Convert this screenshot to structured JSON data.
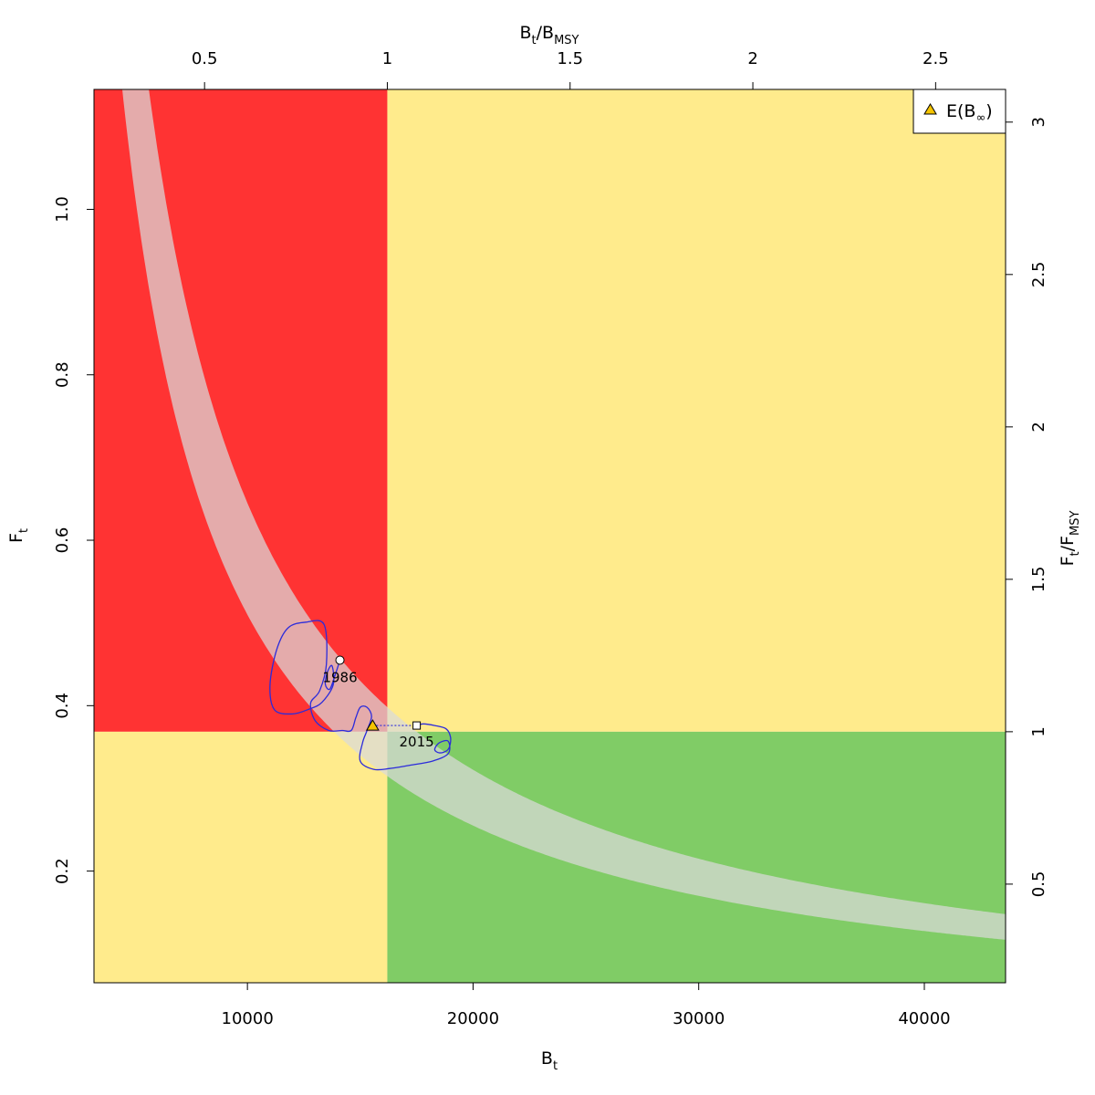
{
  "chart_data": {
    "type": "line",
    "xlabel": {
      "main": "B",
      "sub": "t"
    },
    "ylabel": {
      "main": "F",
      "sub": "t"
    },
    "top_xlabel": {
      "main": "B",
      "sub1": "t",
      "mid": "/B",
      "sub2": "MSY"
    },
    "right_ylabel": {
      "main": "F",
      "sub1": "t",
      "mid": "/F",
      "sub2": "MSY"
    },
    "xlim": [
      3200,
      43600
    ],
    "ylim": [
      0.065,
      1.145
    ],
    "Bmsy": 16200,
    "Fmsy": 0.3685,
    "x_ticks": [
      10000,
      20000,
      30000,
      40000
    ],
    "y_ticks": [
      0.2,
      0.4,
      0.6,
      0.8,
      1.0
    ],
    "x_tick_labels": [
      "10000",
      "20000",
      "30000",
      "40000"
    ],
    "y_tick_labels": [
      "0.2",
      "0.4",
      "0.6",
      "0.8",
      "1.0"
    ],
    "top_ticks": [
      0.5,
      1,
      1.5,
      2,
      2.5
    ],
    "top_tick_labels": [
      "0.5",
      "1",
      "1.5",
      "2",
      "2.5"
    ],
    "right_ticks": [
      0.5,
      1,
      1.5,
      2,
      2.5,
      3
    ],
    "right_tick_labels": [
      "0.5",
      "1",
      "1.5",
      "2",
      "2.5",
      "3"
    ],
    "zone_colors": {
      "overfished_overfishing": "#ff3333",
      "caution": "#ffeb8c",
      "healthy": "#80cc66"
    },
    "msy_band": {
      "lower_catch": 5100,
      "upper_catch": 6450,
      "color": "#d9d9d9"
    },
    "trajectory": {
      "color": "#2b2bdb",
      "points": [
        [
          14100,
          0.455
        ],
        [
          13900,
          0.438
        ],
        [
          13650,
          0.42
        ],
        [
          13450,
          0.426
        ],
        [
          13550,
          0.441
        ],
        [
          13750,
          0.448
        ],
        [
          13800,
          0.425
        ],
        [
          13300,
          0.404
        ],
        [
          12750,
          0.396
        ],
        [
          12000,
          0.39
        ],
        [
          11200,
          0.395
        ],
        [
          11000,
          0.425
        ],
        [
          11300,
          0.468
        ],
        [
          11800,
          0.494
        ],
        [
          12600,
          0.501
        ],
        [
          13400,
          0.498
        ],
        [
          13500,
          0.45
        ],
        [
          13200,
          0.418
        ],
        [
          12800,
          0.403
        ],
        [
          13000,
          0.382
        ],
        [
          13600,
          0.37
        ],
        [
          14200,
          0.37
        ],
        [
          14600,
          0.37
        ],
        [
          14800,
          0.385
        ],
        [
          15000,
          0.398
        ],
        [
          15300,
          0.398
        ],
        [
          15500,
          0.387
        ],
        [
          15300,
          0.37
        ],
        [
          15100,
          0.355
        ],
        [
          15000,
          0.333
        ],
        [
          15600,
          0.323
        ],
        [
          16300,
          0.324
        ],
        [
          17200,
          0.328
        ],
        [
          18200,
          0.333
        ],
        [
          18900,
          0.342
        ],
        [
          18900,
          0.357
        ],
        [
          18500,
          0.355
        ],
        [
          18300,
          0.347
        ],
        [
          18500,
          0.343
        ],
        [
          18800,
          0.345
        ],
        [
          18950,
          0.35
        ],
        [
          19000,
          0.362
        ],
        [
          18800,
          0.372
        ],
        [
          18300,
          0.376
        ],
        [
          17800,
          0.378
        ],
        [
          17500,
          0.376
        ]
      ]
    },
    "start_point": {
      "B": 14100,
      "F": 0.455,
      "label": "1986"
    },
    "end_point": {
      "B": 17500,
      "F": 0.376,
      "label": "2015"
    },
    "equilibrium_point": {
      "B": 15550,
      "F": 0.376,
      "color": "#f5c400"
    },
    "legend": {
      "position": "top-right",
      "label_main": "E(B",
      "label_sub": "∞",
      "label_close": ")"
    }
  }
}
